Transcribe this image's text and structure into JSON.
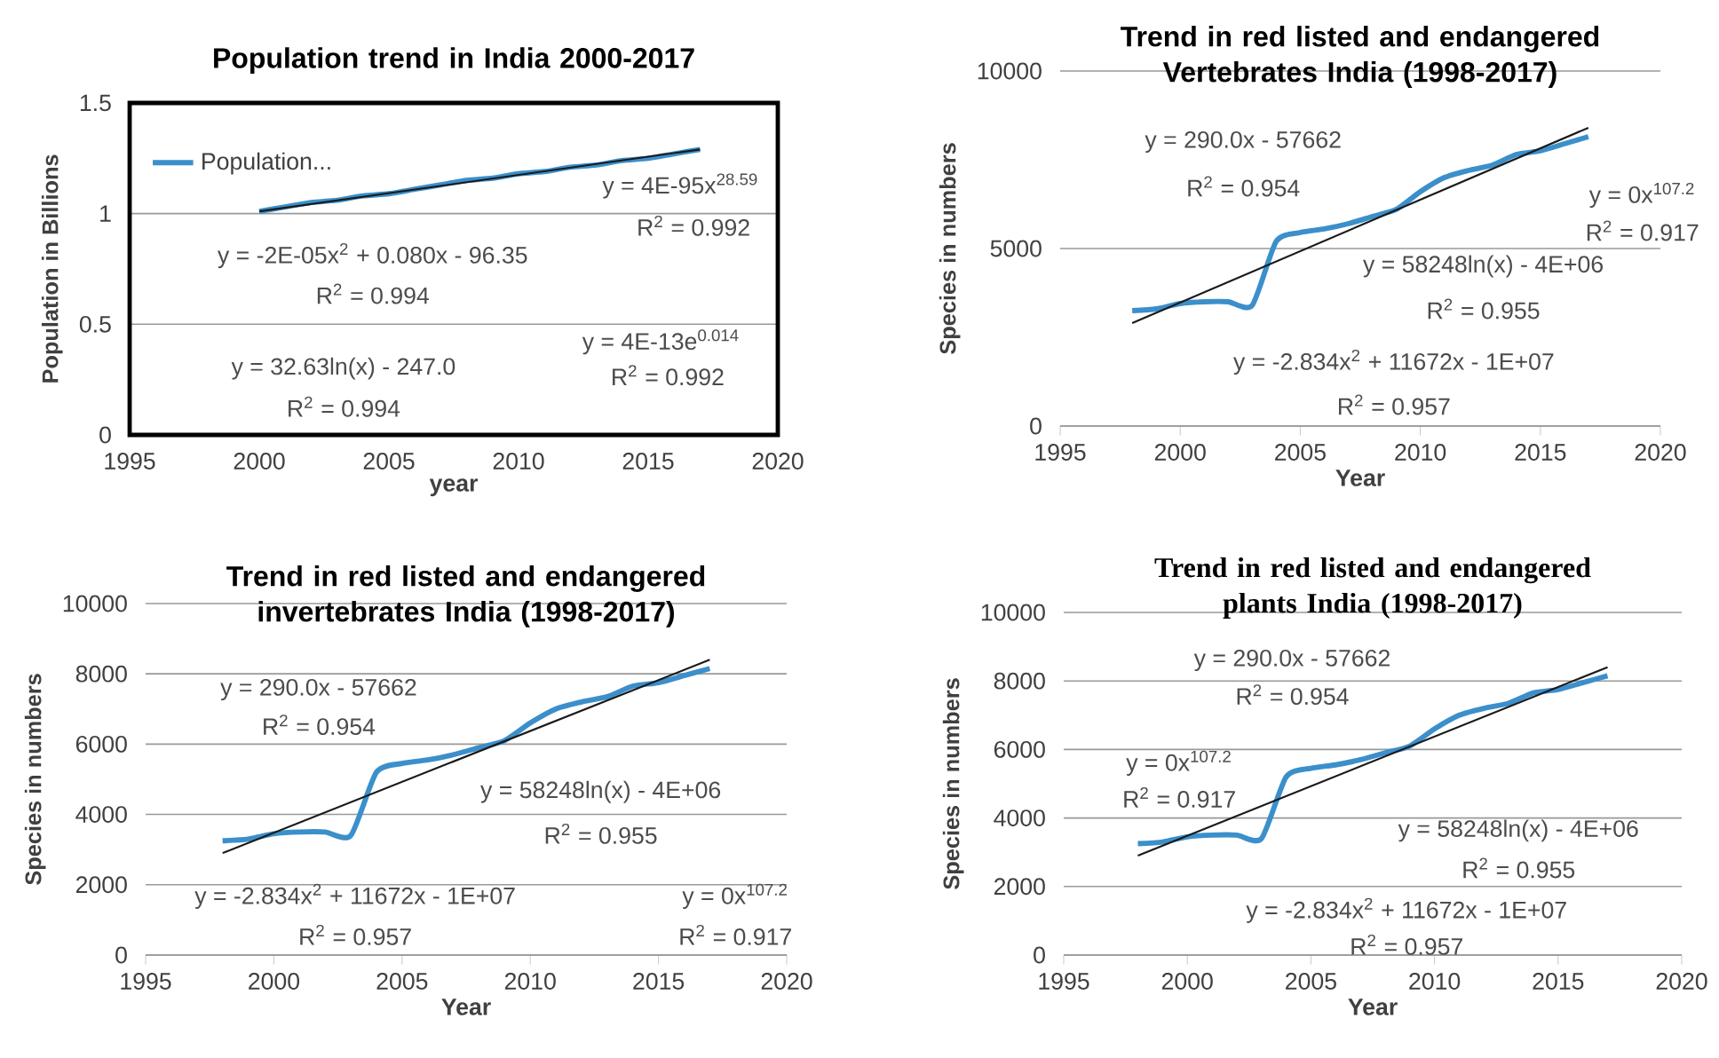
{
  "chart_data": [
    {
      "type": "line",
      "title": "Population trend in India 2000-2017",
      "xlabel": "year",
      "ylabel": "Population in Billions",
      "x": [
        2000,
        2001,
        2002,
        2003,
        2004,
        2005,
        2006,
        2007,
        2008,
        2009,
        2010,
        2011,
        2012,
        2013,
        2014,
        2015,
        2016,
        2017
      ],
      "series": [
        {
          "name": "Population...",
          "color": "#3b8fcb",
          "values": [
            1.01,
            1.03,
            1.05,
            1.06,
            1.08,
            1.09,
            1.11,
            1.13,
            1.15,
            1.16,
            1.18,
            1.19,
            1.21,
            1.22,
            1.24,
            1.25,
            1.27,
            1.29
          ]
        },
        {
          "type": "line",
          "color": "#1a1a1a",
          "x": [
            2000,
            2017
          ],
          "values": [
            1.01,
            1.29
          ]
        }
      ],
      "xlim": [
        1995,
        2020
      ],
      "xticks": [
        1995,
        2000,
        2005,
        2010,
        2015,
        2020
      ],
      "ylim": [
        0,
        1.5
      ],
      "yticks": [
        0,
        0.5,
        1,
        1.5
      ],
      "grid": "y",
      "legend": "top left",
      "annotations": [
        "y = 4E-95x$^{28.59}$",
        "R$^{2}$ = 0.992",
        "y = -2E-05x$^{2}$ + 0.080x - 96.35",
        "R$^{2}$ = 0.994",
        "y = 4E-13e$^{0.014}$",
        "R$^{2}$ = 0.992",
        "y = 32.63ln(x) - 247.0",
        "R$^{2}$ = 0.994"
      ]
    },
    {
      "type": "line",
      "title": "Trend in red listed and endangered Vertebrates India (1998-2017)",
      "xlabel": "Year",
      "ylabel": "Species in numbers",
      "x": [
        1998,
        1999,
        2000,
        2001,
        2002,
        2003,
        2004,
        2005,
        2006,
        2007,
        2008,
        2009,
        2010,
        2011,
        2012,
        2013,
        2014,
        2015,
        2016,
        2017
      ],
      "series": [
        {
          "color": "#3b8fcb",
          "values": [
            3250,
            3300,
            3450,
            3500,
            3500,
            3400,
            5200,
            5450,
            5550,
            5700,
            5900,
            6100,
            6600,
            7000,
            7200,
            7350,
            7650,
            7750,
            7950,
            8150
          ]
        },
        {
          "type": "line",
          "color": "#1a1a1a",
          "x": [
            1998,
            2017
          ],
          "values": [
            2900,
            8400
          ]
        }
      ],
      "xlim": [
        1995,
        2020
      ],
      "xticks": [
        1995,
        2000,
        2005,
        2010,
        2015,
        2020
      ],
      "ylim": [
        0,
        10000
      ],
      "yticks": [
        0,
        5000,
        10000
      ],
      "grid": "y",
      "annotations": [
        "y = 290.0x - 57662",
        "R$^{2}$ = 0.954",
        "y = 0x$^{107.2}$",
        "R$^{2}$ = 0.917",
        "y = 58248ln(x) - 4E+06",
        "R$^{2}$ = 0.955",
        "y = -2.834x$^{2}$ + 11672x - 1E+07",
        "R$^{2}$ = 0.957"
      ]
    },
    {
      "type": "line",
      "title": "Trend in red listed and endangered invertebrates India (1998-2017)",
      "xlabel": "Year",
      "ylabel": "Species in numbers",
      "x": [
        1998,
        1999,
        2000,
        2001,
        2002,
        2003,
        2004,
        2005,
        2006,
        2007,
        2008,
        2009,
        2010,
        2011,
        2012,
        2013,
        2014,
        2015,
        2016,
        2017
      ],
      "series": [
        {
          "color": "#3b8fcb",
          "values": [
            3250,
            3300,
            3450,
            3500,
            3500,
            3400,
            5200,
            5450,
            5550,
            5700,
            5900,
            6100,
            6600,
            7000,
            7200,
            7350,
            7650,
            7750,
            7950,
            8150
          ]
        },
        {
          "type": "line",
          "color": "#1a1a1a",
          "x": [
            1998,
            2017
          ],
          "values": [
            2900,
            8400
          ]
        }
      ],
      "xlim": [
        1995,
        2020
      ],
      "xticks": [
        1995,
        2000,
        2005,
        2010,
        2015,
        2020
      ],
      "ylim": [
        0,
        10000
      ],
      "yticks": [
        0,
        2000,
        4000,
        6000,
        8000,
        10000
      ],
      "grid": "y",
      "annotations": [
        "y = 290.0x - 57662",
        "R$^{2}$ = 0.954",
        "y = 58248ln(x) - 4E+06",
        "R$^{2}$ = 0.955",
        "y = -2.834x$^{2}$ + 11672x - 1E+07",
        "R$^{2}$ = 0.957",
        "y = 0x$^{107.2}$",
        "R$^{2}$ = 0.917"
      ]
    },
    {
      "type": "line",
      "title": "Trend in red listed and endangered plants India (1998-2017)",
      "xlabel": "Year",
      "ylabel": "Species in numbers",
      "x": [
        1998,
        1999,
        2000,
        2001,
        2002,
        2003,
        2004,
        2005,
        2006,
        2007,
        2008,
        2009,
        2010,
        2011,
        2012,
        2013,
        2014,
        2015,
        2016,
        2017
      ],
      "series": [
        {
          "color": "#3b8fcb",
          "values": [
            3250,
            3300,
            3450,
            3500,
            3500,
            3400,
            5200,
            5450,
            5550,
            5700,
            5900,
            6100,
            6600,
            7000,
            7200,
            7350,
            7650,
            7750,
            7950,
            8150
          ]
        },
        {
          "type": "line",
          "color": "#1a1a1a",
          "x": [
            1998,
            2017
          ],
          "values": [
            2900,
            8400
          ]
        }
      ],
      "xlim": [
        1995,
        2020
      ],
      "xticks": [
        1995,
        2000,
        2005,
        2010,
        2015,
        2020
      ],
      "ylim": [
        0,
        10000
      ],
      "yticks": [
        0,
        2000,
        4000,
        6000,
        8000,
        10000
      ],
      "grid": "y",
      "annotations": [
        "y = 290.0x - 57662",
        "R$^{2}$ = 0.954",
        "y = 0x$^{107.2}$",
        "R$^{2}$ = 0.917",
        "y = 58248ln(x) - 4E+06",
        "R$^{2}$ = 0.955",
        "y = -2.834x$^{2}$ + 11672x - 1E+07",
        "R$^{2}$ = 0.957"
      ]
    }
  ]
}
